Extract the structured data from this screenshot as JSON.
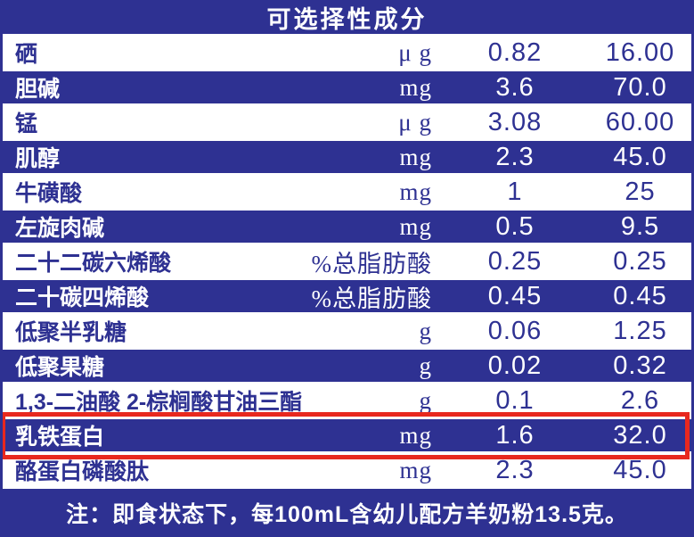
{
  "title": "可选择性成分",
  "rows": [
    {
      "name": "硒",
      "unit": "μ g",
      "v1": "0.82",
      "v2": "16.00",
      "highlight": false
    },
    {
      "name": "胆碱",
      "unit": "mg",
      "v1": "3.6",
      "v2": "70.0",
      "highlight": false
    },
    {
      "name": "锰",
      "unit": "μ g",
      "v1": "3.08",
      "v2": "60.00",
      "highlight": false
    },
    {
      "name": "肌醇",
      "unit": "mg",
      "v1": "2.3",
      "v2": "45.0",
      "highlight": false
    },
    {
      "name": "牛磺酸",
      "unit": "mg",
      "v1": "1",
      "v2": "25",
      "highlight": false
    },
    {
      "name": "左旋肉碱",
      "unit": "mg",
      "v1": "0.5",
      "v2": "9.5",
      "highlight": false
    },
    {
      "name": "二十二碳六烯酸",
      "unit": "%总脂肪酸",
      "v1": "0.25",
      "v2": "0.25",
      "highlight": false
    },
    {
      "name": "二十碳四烯酸",
      "unit": "%总脂肪酸",
      "v1": "0.45",
      "v2": "0.45",
      "highlight": false
    },
    {
      "name": "低聚半乳糖",
      "unit": "g",
      "v1": "0.06",
      "v2": "1.25",
      "highlight": false
    },
    {
      "name": "低聚果糖",
      "unit": "g",
      "v1": "0.02",
      "v2": "0.32",
      "highlight": false
    },
    {
      "name": "1,3-二油酸 2-棕榈酸甘油三酯",
      "unit": "g",
      "v1": "0.1",
      "v2": "2.6",
      "highlight": false
    },
    {
      "name": "乳铁蛋白",
      "unit": "mg",
      "v1": "1.6",
      "v2": "32.0",
      "highlight": true
    },
    {
      "name": "酪蛋白磷酸肽",
      "unit": "mg",
      "v1": "2.3",
      "v2": "45.0",
      "highlight": false
    }
  ],
  "note": "注：即食状态下，每100mL含幼儿配方羊奶粉13.5克。",
  "colors": {
    "table_blue": "#2e3192",
    "highlight_red": "#e8281e",
    "row_alt_white": "#ffffff"
  }
}
